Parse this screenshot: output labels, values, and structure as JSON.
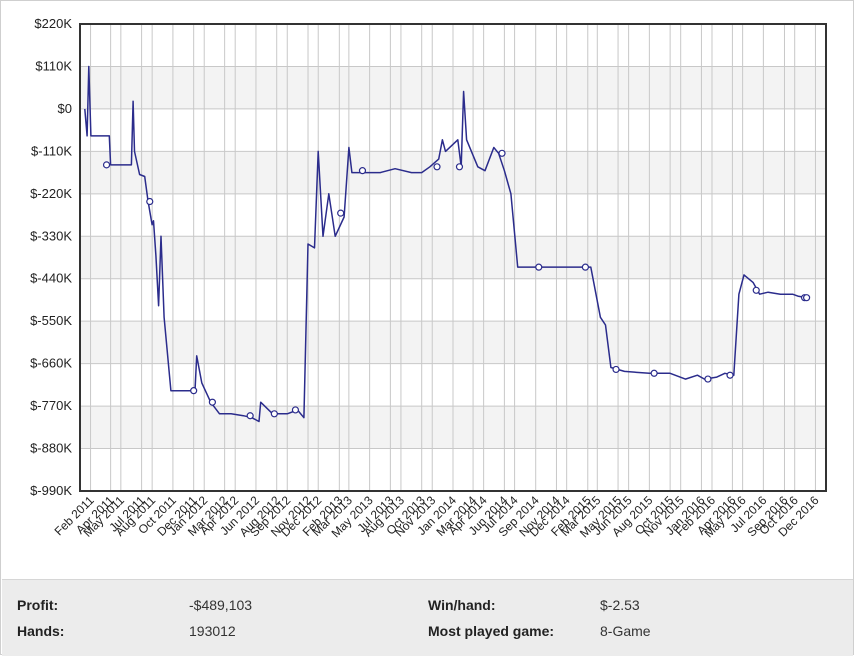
{
  "chart_data": {
    "type": "line",
    "title": "",
    "xlabel": "",
    "ylabel": "",
    "x_range": [
      "2011-01-01",
      "2017-01-01"
    ],
    "ylim": [
      -990000,
      220000
    ],
    "y_ticks": [
      220000,
      110000,
      0,
      -110000,
      -220000,
      -330000,
      -440000,
      -550000,
      -660000,
      -770000,
      -880000,
      -990000
    ],
    "y_tick_labels": [
      "$220K",
      "$110K",
      "$0",
      "$-110K",
      "$-220K",
      "$-330K",
      "$-440K",
      "$-550K",
      "$-660K",
      "$-770K",
      "$-880K",
      "$-990K"
    ],
    "x_tick_labels": [
      {
        "date": "2011-02-01",
        "label": "Feb 2011"
      },
      {
        "date": "2011-04-01",
        "label": "Apr 2011"
      },
      {
        "date": "2011-05-01",
        "label": "May 2011"
      },
      {
        "date": "2011-07-01",
        "label": "Jul 2011"
      },
      {
        "date": "2011-08-01",
        "label": "Aug 2011"
      },
      {
        "date": "2011-10-01",
        "label": "Oct 2011"
      },
      {
        "date": "2011-12-01",
        "label": "Dec 2011"
      },
      {
        "date": "2012-01-01",
        "label": "Jan 2012"
      },
      {
        "date": "2012-03-01",
        "label": "Mar 2012"
      },
      {
        "date": "2012-04-01",
        "label": "Apr 2012"
      },
      {
        "date": "2012-06-01",
        "label": "Jun 2012"
      },
      {
        "date": "2012-08-01",
        "label": "Aug 2012"
      },
      {
        "date": "2012-09-01",
        "label": "Sep 2012"
      },
      {
        "date": "2012-11-01",
        "label": "Nov 2012"
      },
      {
        "date": "2012-12-01",
        "label": "Dec 2012"
      },
      {
        "date": "2013-02-01",
        "label": "Feb 2013"
      },
      {
        "date": "2013-03-01",
        "label": "Mar 2013"
      },
      {
        "date": "2013-05-01",
        "label": "May 2013"
      },
      {
        "date": "2013-07-01",
        "label": "Jul 2013"
      },
      {
        "date": "2013-08-01",
        "label": "Aug 2013"
      },
      {
        "date": "2013-10-01",
        "label": "Oct 2013"
      },
      {
        "date": "2013-11-01",
        "label": "Nov 2013"
      },
      {
        "date": "2014-01-01",
        "label": "Jan 2014"
      },
      {
        "date": "2014-03-01",
        "label": "Mar 2014"
      },
      {
        "date": "2014-04-01",
        "label": "Apr 2014"
      },
      {
        "date": "2014-06-01",
        "label": "Jun 2014"
      },
      {
        "date": "2014-07-01",
        "label": "Jul 2014"
      },
      {
        "date": "2014-09-01",
        "label": "Sep 2014"
      },
      {
        "date": "2014-11-01",
        "label": "Nov 2014"
      },
      {
        "date": "2014-12-01",
        "label": "Dec 2014"
      },
      {
        "date": "2015-02-01",
        "label": "Feb 2015"
      },
      {
        "date": "2015-03-01",
        "label": "Mar 2015"
      },
      {
        "date": "2015-05-01",
        "label": "May 2015"
      },
      {
        "date": "2015-06-01",
        "label": "Jun 2015"
      },
      {
        "date": "2015-08-01",
        "label": "Aug 2015"
      },
      {
        "date": "2015-10-01",
        "label": "Oct 2015"
      },
      {
        "date": "2015-11-01",
        "label": "Nov 2015"
      },
      {
        "date": "2016-01-01",
        "label": "Jan 2016"
      },
      {
        "date": "2016-02-01",
        "label": "Feb 2016"
      },
      {
        "date": "2016-04-01",
        "label": "Apr 2016"
      },
      {
        "date": "2016-05-01",
        "label": "May 2016"
      },
      {
        "date": "2016-07-01",
        "label": "Jul 2016"
      },
      {
        "date": "2016-09-01",
        "label": "Sep 2016"
      },
      {
        "date": "2016-10-01",
        "label": "Oct 2016"
      },
      {
        "date": "2016-12-01",
        "label": "Dec 2016"
      }
    ],
    "grid": true,
    "legend": "none",
    "line_color": "#2b2c8c",
    "series": [
      {
        "values": [
          [
            "2011-01-15",
            0
          ],
          [
            "2011-01-22",
            -70000
          ],
          [
            "2011-01-27",
            110000
          ],
          [
            "2011-02-02",
            -70000
          ],
          [
            "2011-03-01",
            -70000
          ],
          [
            "2011-03-28",
            -70000
          ],
          [
            "2011-04-01",
            -145000
          ],
          [
            "2011-05-10",
            -145000
          ],
          [
            "2011-06-01",
            -145000
          ],
          [
            "2011-06-06",
            20000
          ],
          [
            "2011-06-10",
            -110000
          ],
          [
            "2011-06-25",
            -170000
          ],
          [
            "2011-07-10",
            -175000
          ],
          [
            "2011-07-20",
            -240000
          ],
          [
            "2011-08-01",
            -300000
          ],
          [
            "2011-08-05",
            -290000
          ],
          [
            "2011-08-12",
            -380000
          ],
          [
            "2011-08-20",
            -510000
          ],
          [
            "2011-08-27",
            -330000
          ],
          [
            "2011-09-05",
            -540000
          ],
          [
            "2011-09-25",
            -730000
          ],
          [
            "2011-11-01",
            -730000
          ],
          [
            "2011-12-05",
            -730000
          ],
          [
            "2011-12-10",
            -640000
          ],
          [
            "2011-12-25",
            -710000
          ],
          [
            "2012-01-20",
            -760000
          ],
          [
            "2012-02-15",
            -790000
          ],
          [
            "2012-03-20",
            -790000
          ],
          [
            "2012-04-25",
            -795000
          ],
          [
            "2012-05-20",
            -800000
          ],
          [
            "2012-06-10",
            -810000
          ],
          [
            "2012-06-15",
            -760000
          ],
          [
            "2012-07-20",
            -790000
          ],
          [
            "2012-09-01",
            -790000
          ],
          [
            "2012-10-01",
            -780000
          ],
          [
            "2012-10-20",
            -800000
          ],
          [
            "2012-11-01",
            -350000
          ],
          [
            "2012-11-20",
            -360000
          ],
          [
            "2012-12-01",
            -110000
          ],
          [
            "2012-12-15",
            -330000
          ],
          [
            "2013-01-01",
            -220000
          ],
          [
            "2013-01-20",
            -330000
          ],
          [
            "2013-02-15",
            -280000
          ],
          [
            "2013-03-01",
            -100000
          ],
          [
            "2013-03-10",
            -165000
          ],
          [
            "2013-06-01",
            -165000
          ],
          [
            "2013-07-15",
            -155000
          ],
          [
            "2013-09-01",
            -165000
          ],
          [
            "2013-10-01",
            -165000
          ],
          [
            "2013-10-25",
            -150000
          ],
          [
            "2013-11-20",
            -130000
          ],
          [
            "2013-12-01",
            -80000
          ],
          [
            "2013-12-10",
            -110000
          ],
          [
            "2014-01-15",
            -80000
          ],
          [
            "2014-01-25",
            -150000
          ],
          [
            "2014-02-01",
            45000
          ],
          [
            "2014-02-10",
            -80000
          ],
          [
            "2014-03-15",
            -150000
          ],
          [
            "2014-04-05",
            -160000
          ],
          [
            "2014-05-01",
            -100000
          ],
          [
            "2014-05-15",
            -115000
          ],
          [
            "2014-06-01",
            -160000
          ],
          [
            "2014-06-20",
            -220000
          ],
          [
            "2014-07-10",
            -410000
          ],
          [
            "2014-09-01",
            -410000
          ],
          [
            "2014-11-01",
            -410000
          ],
          [
            "2015-02-10",
            -410000
          ],
          [
            "2015-03-10",
            -540000
          ],
          [
            "2015-03-25",
            -560000
          ],
          [
            "2015-04-10",
            -670000
          ],
          [
            "2015-05-20",
            -680000
          ],
          [
            "2015-08-01",
            -685000
          ],
          [
            "2015-10-01",
            -685000
          ],
          [
            "2015-11-15",
            -700000
          ],
          [
            "2015-12-20",
            -690000
          ],
          [
            "2016-01-10",
            -700000
          ],
          [
            "2016-02-15",
            -695000
          ],
          [
            "2016-03-10",
            -685000
          ],
          [
            "2016-04-05",
            -690000
          ],
          [
            "2016-04-20",
            -480000
          ],
          [
            "2016-05-05",
            -430000
          ],
          [
            "2016-06-01",
            -450000
          ],
          [
            "2016-06-20",
            -480000
          ],
          [
            "2016-07-15",
            -475000
          ],
          [
            "2016-08-20",
            -480000
          ],
          [
            "2016-09-25",
            -480000
          ],
          [
            "2016-10-10",
            -485000
          ],
          [
            "2016-11-05",
            -489103
          ]
        ],
        "markers": [
          [
            "2011-03-20",
            -145000
          ],
          [
            "2011-07-25",
            -240000
          ],
          [
            "2011-12-01",
            -730000
          ],
          [
            "2012-01-25",
            -760000
          ],
          [
            "2012-05-15",
            -795000
          ],
          [
            "2012-07-25",
            -790000
          ],
          [
            "2012-09-25",
            -780000
          ],
          [
            "2013-02-05",
            -270000
          ],
          [
            "2013-04-10",
            -160000
          ],
          [
            "2013-11-15",
            -150000
          ],
          [
            "2014-01-20",
            -150000
          ],
          [
            "2014-05-25",
            -115000
          ],
          [
            "2014-09-10",
            -410000
          ],
          [
            "2015-01-25",
            -410000
          ],
          [
            "2015-04-25",
            -675000
          ],
          [
            "2015-08-15",
            -685000
          ],
          [
            "2016-01-20",
            -700000
          ],
          [
            "2016-03-25",
            -690000
          ],
          [
            "2016-06-10",
            -470000
          ],
          [
            "2016-10-30",
            -489103
          ],
          [
            "2016-11-05",
            -489103
          ]
        ]
      }
    ]
  },
  "stats": {
    "profit_label": "Profit:",
    "profit_value": "-$489,103",
    "hands_label": "Hands:",
    "hands_value": "193012",
    "winhand_label": "Win/hand:",
    "winhand_value": "$-2.53",
    "game_label": "Most played game:",
    "game_value": "8-Game"
  }
}
